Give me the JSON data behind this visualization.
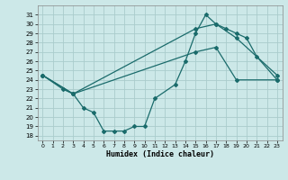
{
  "xlabel": "Humidex (Indice chaleur)",
  "bg_color": "#cce8e8",
  "grid_color": "#aacccc",
  "line_color": "#1a6b6b",
  "xlim": [
    -0.5,
    23.5
  ],
  "ylim": [
    17.5,
    32
  ],
  "xticks": [
    0,
    1,
    2,
    3,
    4,
    5,
    6,
    7,
    8,
    9,
    10,
    11,
    12,
    13,
    14,
    15,
    16,
    17,
    18,
    19,
    20,
    21,
    22,
    23
  ],
  "yticks": [
    18,
    19,
    20,
    21,
    22,
    23,
    24,
    25,
    26,
    27,
    28,
    29,
    30,
    31
  ],
  "line1_x": [
    0,
    2,
    3,
    4,
    5,
    6,
    7,
    8,
    9,
    10,
    11,
    13,
    14,
    15,
    16,
    17,
    18,
    19,
    20,
    21,
    23
  ],
  "line1_y": [
    24.5,
    23.0,
    22.5,
    21.0,
    20.5,
    18.5,
    18.5,
    18.5,
    19.0,
    19.0,
    22.0,
    23.5,
    26.0,
    29.0,
    31.0,
    30.0,
    29.5,
    29.0,
    28.5,
    26.5,
    24.0
  ],
  "line2_x": [
    0,
    3,
    15,
    17,
    19,
    23
  ],
  "line2_y": [
    24.5,
    22.5,
    29.5,
    30.0,
    28.5,
    24.5
  ],
  "line3_x": [
    0,
    3,
    15,
    17,
    19,
    23
  ],
  "line3_y": [
    24.5,
    22.5,
    27.0,
    27.5,
    24.0,
    24.0
  ]
}
